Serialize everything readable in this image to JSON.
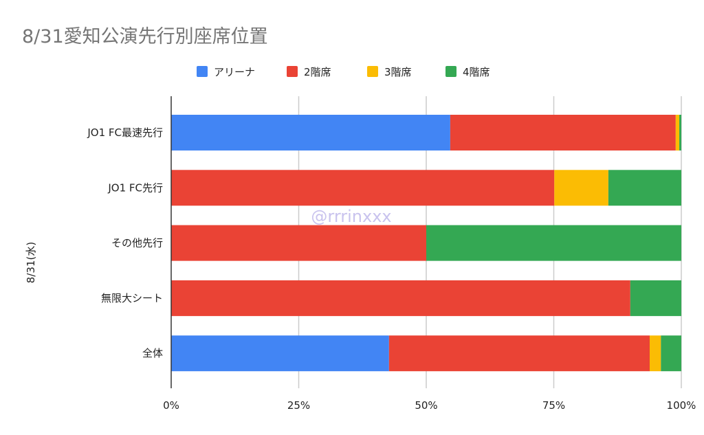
{
  "chart_data": {
    "type": "bar",
    "orientation": "horizontal",
    "stacked": "percent",
    "title": "8/31愛知公演先行別座席位置",
    "ylabel": "8/31(水)",
    "xlabel": "",
    "categories": [
      "JO1 FC最速先行",
      "JO1 FC先行",
      "その他先行",
      "無限大シート",
      "全体"
    ],
    "series": [
      {
        "name": "アリーナ",
        "color": "#4285f4",
        "values": [
          54.7,
          0,
          0,
          0,
          42.7
        ]
      },
      {
        "name": "2階席",
        "color": "#ea4335",
        "values": [
          44.2,
          75.1,
          50.0,
          90.0,
          51.1
        ]
      },
      {
        "name": "3階席",
        "color": "#fbbc04",
        "values": [
          0.7,
          10.6,
          0,
          0,
          2.2
        ]
      },
      {
        "name": "4階席",
        "color": "#34a853",
        "values": [
          0.4,
          14.3,
          50.0,
          10.0,
          4.0
        ]
      }
    ],
    "xticks": [
      "0%",
      "25%",
      "50%",
      "75%",
      "100%"
    ],
    "xlim": [
      0,
      100
    ],
    "grid": true,
    "legend": "top-center",
    "watermark": "@rrrinxxx"
  }
}
